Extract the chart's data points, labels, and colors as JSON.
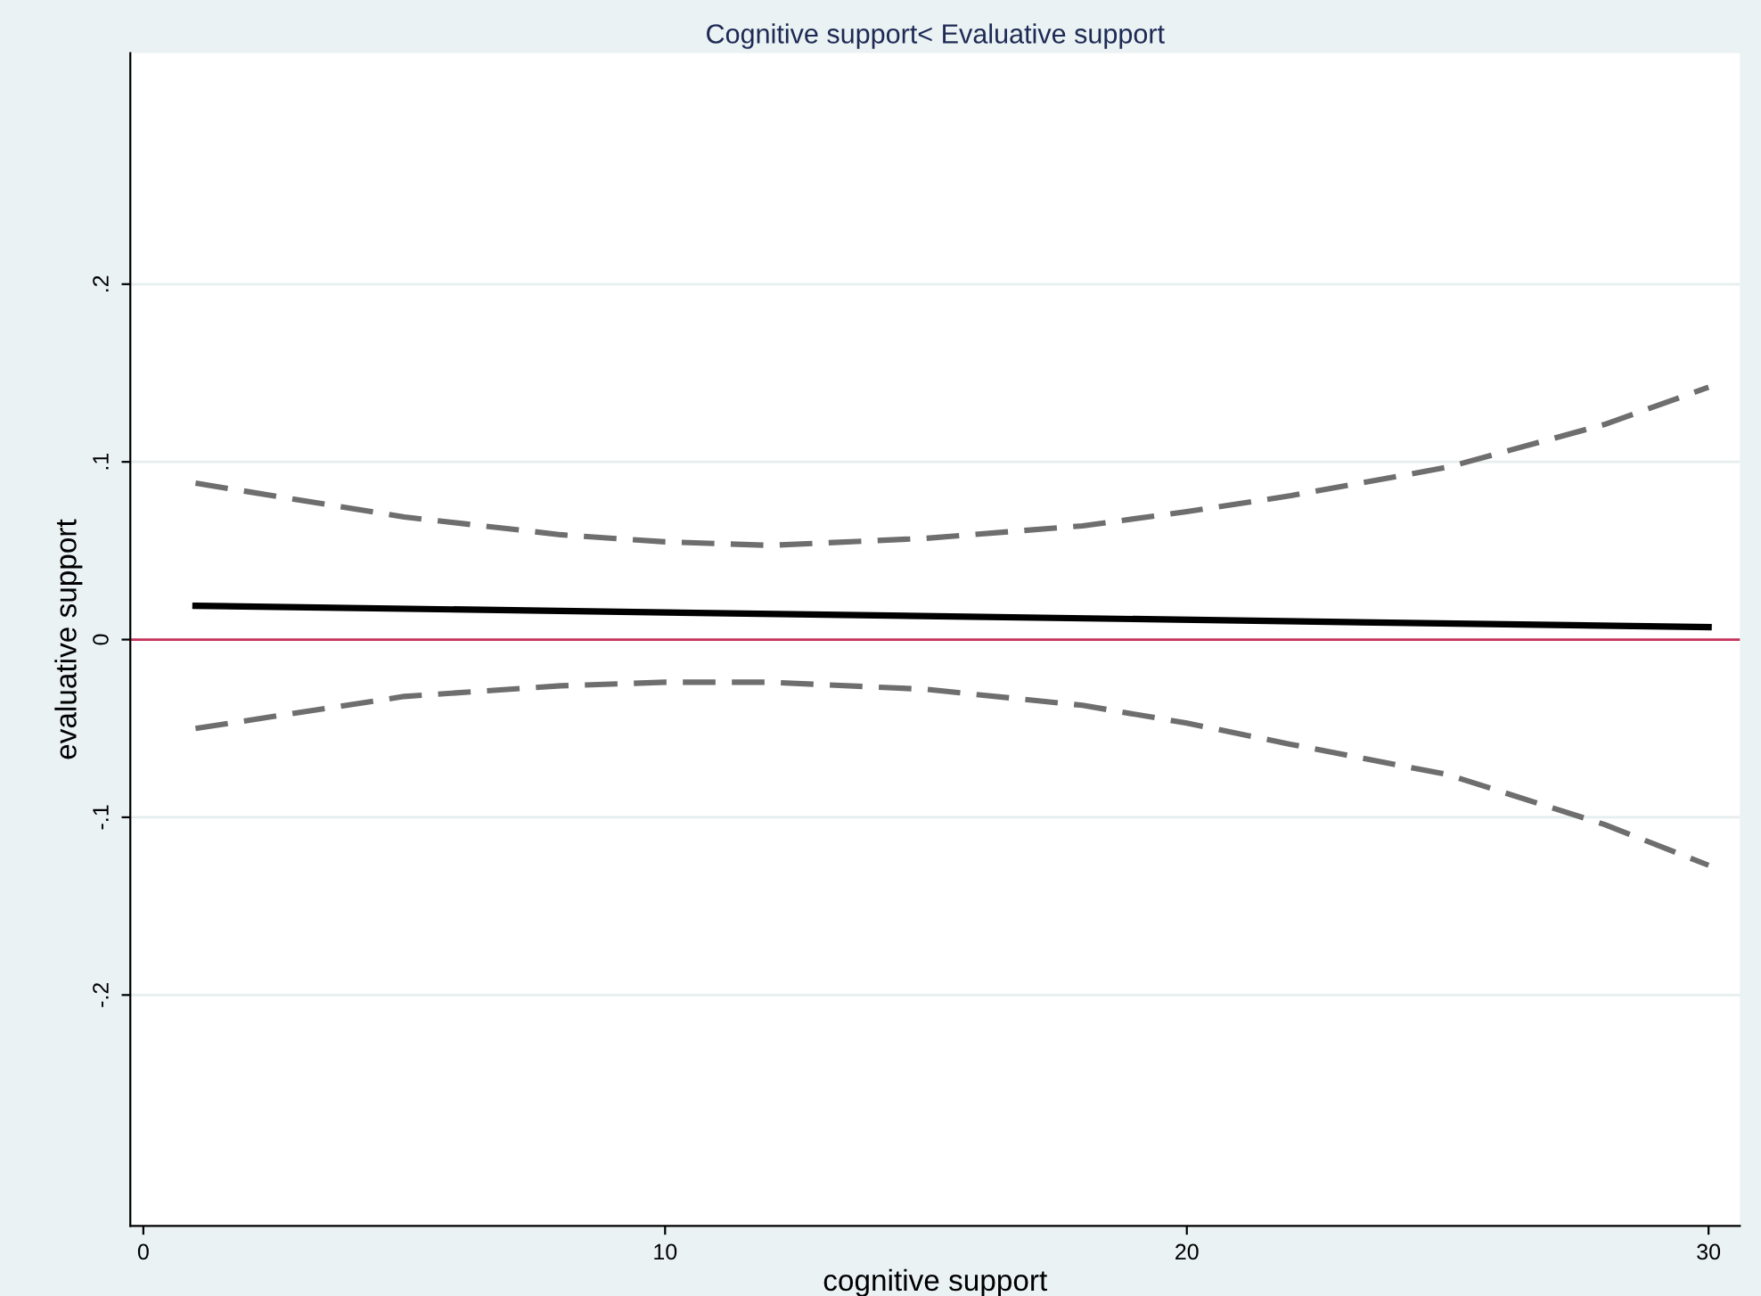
{
  "chart_data": {
    "type": "line",
    "title": "Cognitive support< Evaluative support",
    "xlabel": "cognitive support",
    "ylabel": "evaluative support",
    "xlim": [
      -0.25,
      30.6
    ],
    "xticks": [
      0,
      10,
      20,
      30
    ],
    "ylim": [
      -0.33,
      0.33
    ],
    "yticks": [
      {
        "value": -0.2,
        "label": "-.2"
      },
      {
        "value": -0.1,
        "label": "-.1"
      },
      0,
      {
        "value": 0.1,
        "label": ".1"
      },
      {
        "value": 0.2,
        "label": ".2"
      }
    ],
    "grid": "y",
    "legend": false,
    "ref_lines": [
      {
        "axis": "y",
        "value": 0,
        "color": "#c8305a"
      }
    ],
    "series": [
      {
        "color": "#000000",
        "line_style": "solid",
        "x": [
          1,
          30
        ],
        "values": [
          0.019,
          0.007
        ]
      },
      {
        "color": "#6e6e6e",
        "line_style": "dashed",
        "x": [
          1,
          5,
          8,
          10,
          12,
          15,
          18,
          20,
          22,
          25,
          28,
          30
        ],
        "values": [
          0.088,
          0.069,
          0.059,
          0.055,
          0.053,
          0.057,
          0.064,
          0.072,
          0.081,
          0.097,
          0.121,
          0.142
        ]
      },
      {
        "color": "#6e6e6e",
        "line_style": "dashed",
        "x": [
          1,
          5,
          8,
          10,
          12,
          15,
          18,
          20,
          22,
          25,
          28,
          30
        ],
        "values": [
          -0.05,
          -0.032,
          -0.026,
          -0.024,
          -0.024,
          -0.028,
          -0.037,
          -0.047,
          -0.059,
          -0.076,
          -0.104,
          -0.127
        ]
      }
    ]
  }
}
